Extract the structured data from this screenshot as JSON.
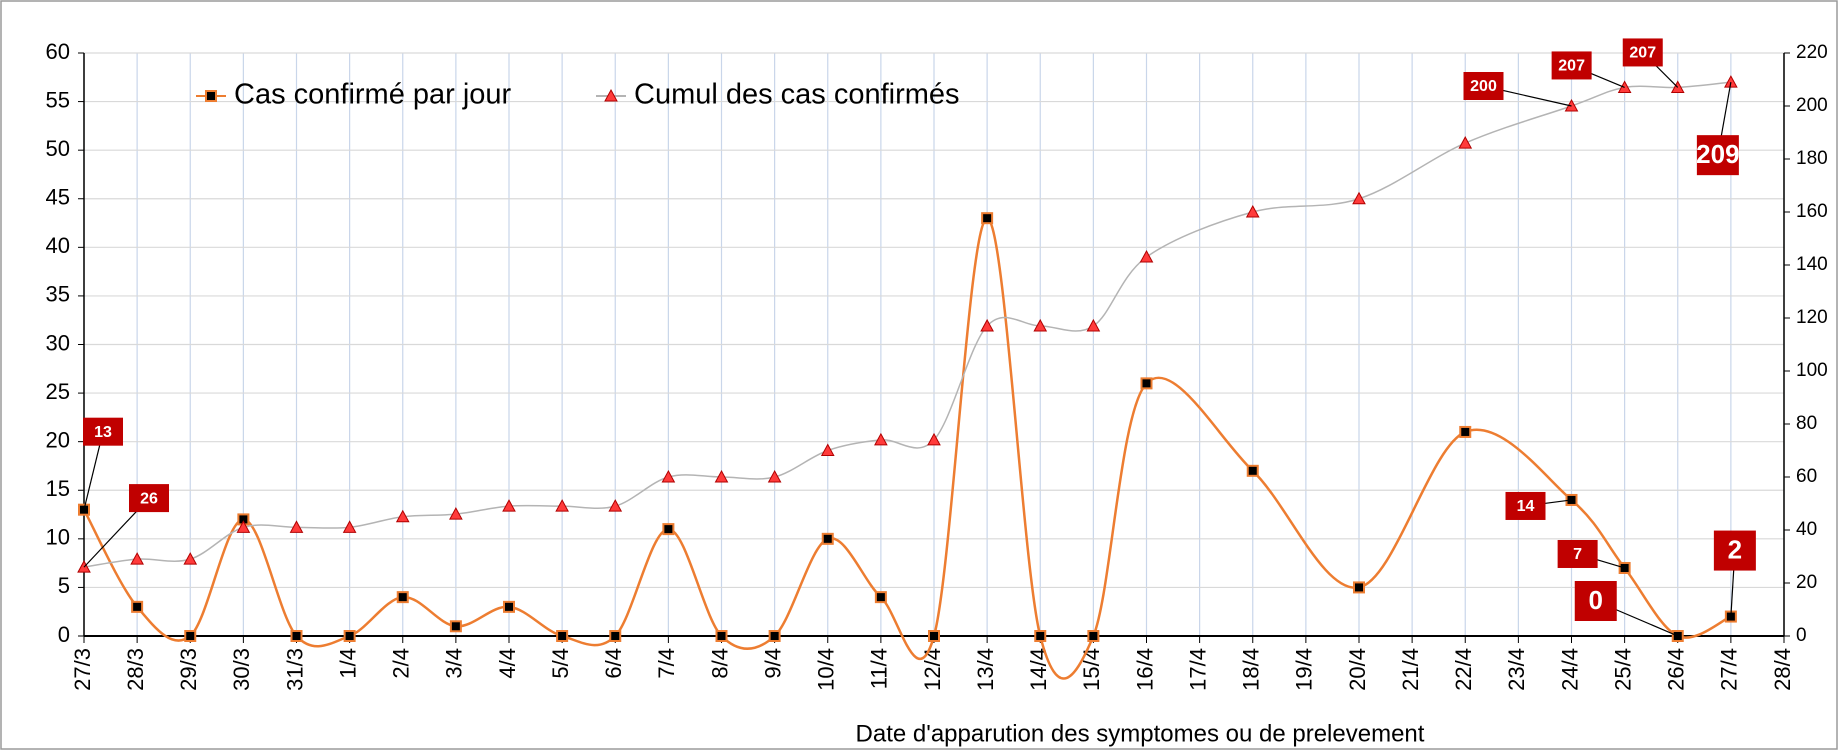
{
  "chart_data": {
    "type": "line",
    "x_label": "Date d'apparution des symptomes ou de prelevement",
    "categories": [
      "27/3",
      "28/3",
      "29/3",
      "30/3",
      "31/3",
      "1/4",
      "2/4",
      "3/4",
      "4/4",
      "5/4",
      "6/4",
      "7/4",
      "8/4",
      "9/4",
      "10/4",
      "11/4",
      "12/4",
      "13/4",
      "14/4",
      "15/4",
      "16/4",
      "17/4",
      "18/4",
      "19/4",
      "20/4",
      "21/4",
      "22/4",
      "23/4",
      "24/4",
      "25/4",
      "26/4",
      "27/4",
      "28/4"
    ],
    "series": [
      {
        "name": "Cas confirmé par jour",
        "color": "#ed7d31",
        "marker": "square",
        "marker_color": "#000000",
        "axis": "y",
        "values": [
          13,
          3,
          0,
          12,
          0,
          0,
          4,
          1,
          3,
          0,
          0,
          11,
          0,
          0,
          10,
          4,
          0,
          43,
          0,
          0,
          26,
          null,
          17,
          null,
          5,
          null,
          21,
          null,
          14,
          7,
          0,
          2,
          null
        ],
        "value_labels": [
          "13",
          null,
          null,
          null,
          null,
          null,
          null,
          null,
          null,
          null,
          null,
          null,
          null,
          null,
          null,
          null,
          null,
          null,
          null,
          null,
          null,
          null,
          null,
          null,
          null,
          null,
          null,
          null,
          "14",
          "7",
          "0",
          "2",
          null
        ]
      },
      {
        "name": "Cumul des cas confirmés",
        "color": "#b4b4b4",
        "marker": "triangle",
        "marker_color": "#ff3b3b",
        "axis": "y2",
        "values": [
          26,
          29,
          29,
          41,
          41,
          41,
          45,
          46,
          49,
          49,
          49,
          60,
          60,
          60,
          70,
          74,
          74,
          117,
          117,
          117,
          143,
          null,
          160,
          null,
          165,
          null,
          186,
          null,
          200,
          207,
          207,
          209,
          null
        ],
        "value_labels": [
          "26",
          null,
          null,
          null,
          null,
          null,
          null,
          null,
          null,
          null,
          null,
          null,
          null,
          null,
          null,
          null,
          null,
          null,
          null,
          null,
          null,
          null,
          null,
          null,
          null,
          null,
          null,
          null,
          "200",
          "207",
          "207",
          "209",
          null
        ]
      }
    ],
    "ylim": [
      0,
      60
    ],
    "yticks": [
      0,
      5,
      10,
      15,
      20,
      25,
      30,
      35,
      40,
      45,
      50,
      55,
      60
    ],
    "y2lim": [
      0,
      220
    ],
    "y2ticks": [
      0,
      20,
      40,
      60,
      80,
      100,
      120,
      140,
      160,
      180,
      200,
      220
    ],
    "smooth": true,
    "span_gaps": true,
    "grid": true,
    "legend": "top-left",
    "label_color": "#c00000"
  }
}
